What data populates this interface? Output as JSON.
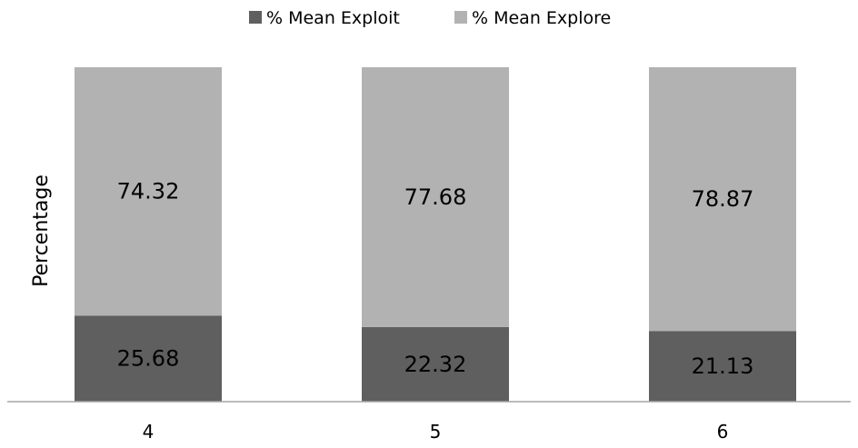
{
  "chart_data": {
    "type": "bar",
    "stacked": true,
    "categories": [
      "4",
      "5",
      "6"
    ],
    "series": [
      {
        "name": "% Mean Exploit",
        "values": [
          25.68,
          22.32,
          21.13
        ],
        "color": "#5f5f5f"
      },
      {
        "name": "% Mean Explore",
        "values": [
          74.32,
          77.68,
          78.87
        ],
        "color": "#b2b2b2"
      }
    ],
    "data_labels": [
      [
        "25.68",
        "22.32",
        "21.13"
      ],
      [
        "74.32",
        "77.68",
        "78.87"
      ]
    ],
    "title": "",
    "xlabel": "",
    "ylabel": "Percentage",
    "ylim": [
      0,
      100
    ],
    "grid": false,
    "legend": "top-center",
    "axis_color": "#a6a6a6"
  }
}
